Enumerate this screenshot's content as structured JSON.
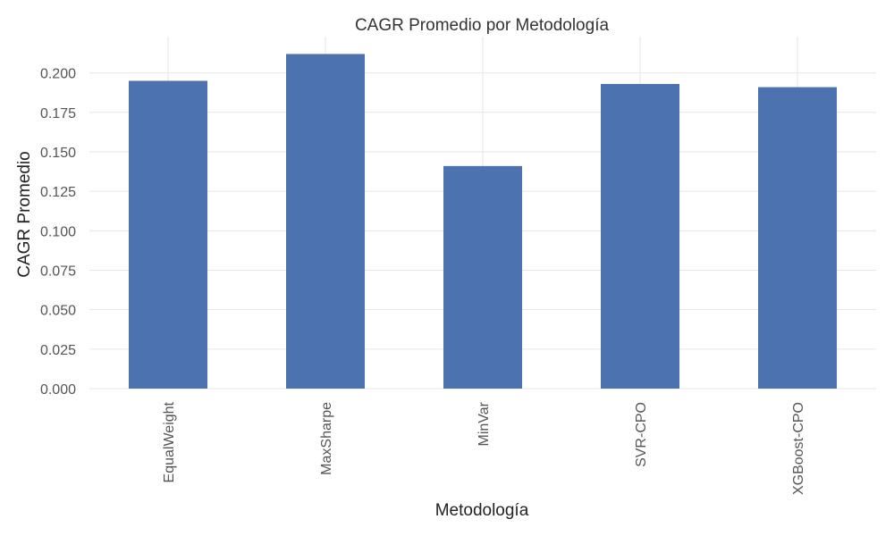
{
  "chart_data": {
    "type": "bar",
    "title": "CAGR Promedio por Metodología",
    "xlabel": "Metodología",
    "ylabel": "CAGR Promedio",
    "categories": [
      "EqualWeight",
      "MaxSharpe",
      "MinVar",
      "SVR-CPO",
      "XGBoost-CPO"
    ],
    "values": [
      0.195,
      0.212,
      0.141,
      0.193,
      0.191
    ],
    "ylim": [
      0,
      0.223
    ],
    "yticks": [
      "0.000",
      "0.025",
      "0.050",
      "0.075",
      "0.100",
      "0.125",
      "0.150",
      "0.175",
      "0.200"
    ],
    "grid": true,
    "bar_color": "#4c72b0",
    "grid_color": "#e6e6e6"
  }
}
